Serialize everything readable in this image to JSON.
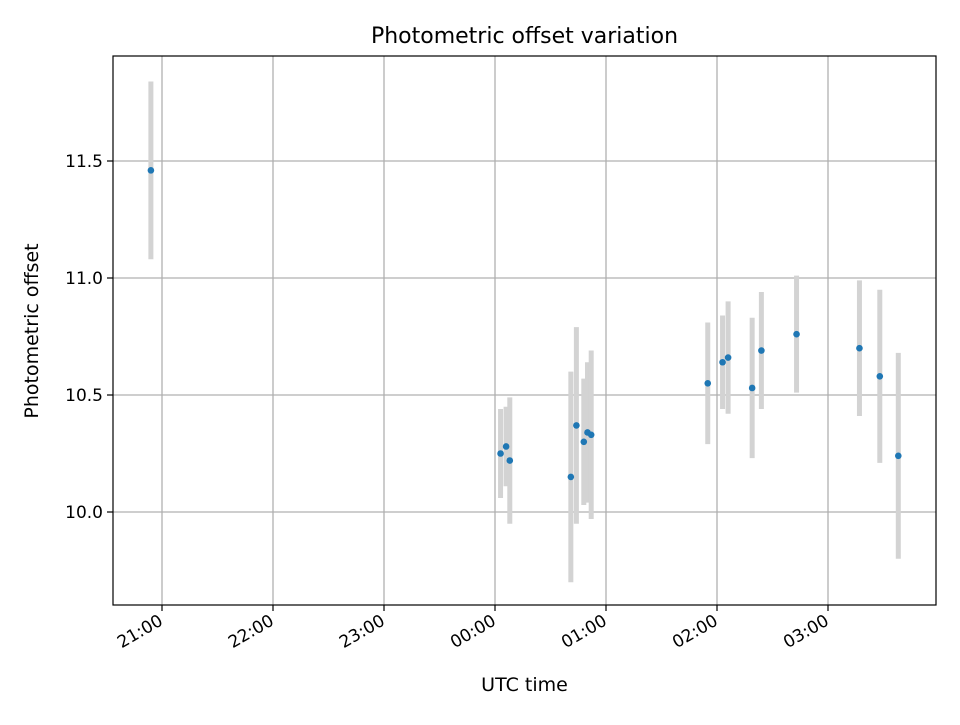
{
  "chart_data": {
    "type": "scatter",
    "title": "Photometric offset variation",
    "xlabel": "UTC time",
    "ylabel": "Photometric offset",
    "x_tick_labels": [
      "21:00",
      "22:00",
      "23:00",
      "00:00",
      "01:00",
      "02:00",
      "03:00"
    ],
    "y_tick_labels": [
      "10.0",
      "10.5",
      "11.0",
      "11.5"
    ],
    "y_ticks": [
      10.0,
      10.5,
      11.0,
      11.5
    ],
    "grid": true,
    "points": [
      {
        "time": "20:54",
        "y": 11.46,
        "err": 0.38
      },
      {
        "time": "00:03",
        "y": 10.25,
        "err": 0.19
      },
      {
        "time": "00:06",
        "y": 10.28,
        "err": 0.17
      },
      {
        "time": "00:08",
        "y": 10.22,
        "err": 0.27
      },
      {
        "time": "00:41",
        "y": 10.15,
        "err": 0.45
      },
      {
        "time": "00:44",
        "y": 10.37,
        "err": 0.42
      },
      {
        "time": "00:48",
        "y": 10.3,
        "err": 0.27
      },
      {
        "time": "00:50",
        "y": 10.34,
        "err": 0.3
      },
      {
        "time": "00:52",
        "y": 10.33,
        "err": 0.36
      },
      {
        "time": "01:55",
        "y": 10.55,
        "err": 0.26
      },
      {
        "time": "02:03",
        "y": 10.64,
        "err": 0.2
      },
      {
        "time": "02:06",
        "y": 10.66,
        "err": 0.24
      },
      {
        "time": "02:19",
        "y": 10.53,
        "err": 0.3
      },
      {
        "time": "02:24",
        "y": 10.69,
        "err": 0.25
      },
      {
        "time": "02:43",
        "y": 10.76,
        "err": 0.25
      },
      {
        "time": "03:17",
        "y": 10.7,
        "err": 0.29
      },
      {
        "time": "03:28",
        "y": 10.58,
        "err": 0.37
      },
      {
        "time": "03:38",
        "y": 10.24,
        "err": 0.44
      }
    ],
    "colors": {
      "marker": "#1f77b4",
      "errorbar": "#d3d3d3",
      "grid": "#b0b0b0",
      "axes": "#000000"
    }
  }
}
